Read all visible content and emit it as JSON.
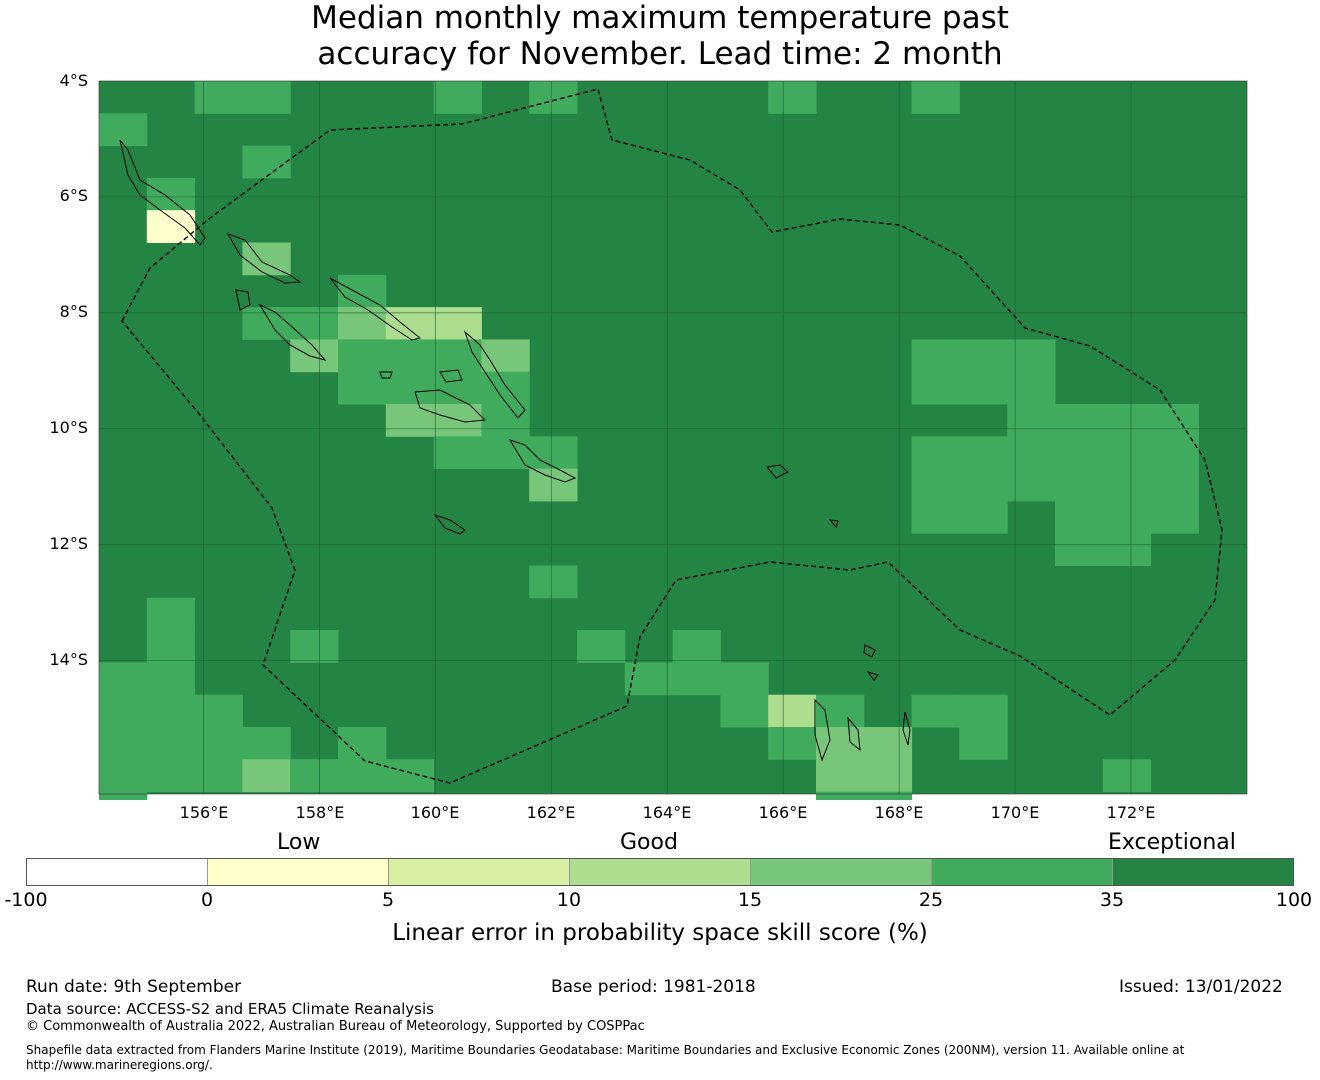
{
  "title": {
    "line1": "Median monthly maximum temperature past",
    "line2": "accuracy for November. Lead time: 2 month"
  },
  "map": {
    "lon_range": [
      154.2,
      174.0
    ],
    "lat_range": [
      -4.0,
      -16.3
    ],
    "lat_labels": [
      "4°S",
      "6°S",
      "8°S",
      "10°S",
      "12°S",
      "14°S"
    ],
    "lat_values": [
      -4,
      -6,
      -8,
      -10,
      -12,
      -14
    ],
    "lon_labels": [
      "156°E",
      "158°E",
      "160°E",
      "162°E",
      "164°E",
      "166°E",
      "168°E",
      "170°E",
      "172°E"
    ],
    "lon_values": [
      156,
      158,
      160,
      162,
      164,
      166,
      168,
      170,
      172
    ],
    "background_class": "exceptional-dark",
    "grid": true,
    "boundary": "Solomon Islands EEZ (dashed)",
    "cell_size_deg": 0.8
  },
  "colorbar": {
    "category_labels": {
      "low": "Low",
      "good": "Good",
      "exceptional": "Exceptional"
    },
    "ticks": [
      "-100",
      "0",
      "5",
      "10",
      "15",
      "25",
      "35",
      "100"
    ],
    "colors": [
      "#ffffff",
      "#ffffcc",
      "#d9f0a3",
      "#addd8e",
      "#78c679",
      "#41ab5d",
      "#238443"
    ],
    "label": "Linear error in probability space skill score (%)"
  },
  "footer": {
    "run_date": "Run date: 9th September",
    "base_period": "Base period: 1981-2018",
    "issued": "Issued: 13/01/2022",
    "data_source": "Data source: ACCESS-S2 and ERA5 Climate Reanalysis",
    "copyright": "© Commonwealth of Australia 2022, Australian Bureau of Meteorology, Supported by COSPPac",
    "shapefile": "Shapefile data extracted from Flanders Marine Institute (2019), Maritime Boundaries Geodatabase: Maritime Boundaries and Exclusive Economic Zones (200NM), version 11. Available online at http://www.marineregions.org/."
  }
}
